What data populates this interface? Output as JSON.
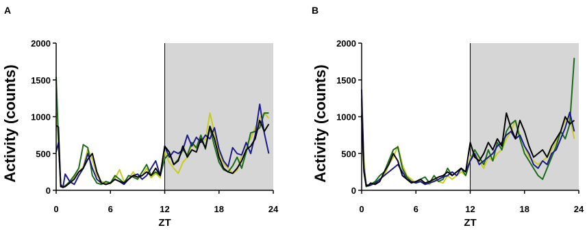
{
  "chart_data": [
    {
      "type": "line",
      "panel_label": "A",
      "xlabel": "ZT",
      "ylabel": "Activity (counts)",
      "xlim": [
        0,
        24
      ],
      "ylim": [
        0,
        2000
      ],
      "xticks": [
        0,
        6,
        12,
        18,
        24
      ],
      "yticks": [
        0,
        500,
        1000,
        1500,
        2000
      ],
      "shaded_region": [
        12,
        24
      ],
      "shade_color": "#d6d6d6",
      "divider_at": 12,
      "grid": false,
      "series": [
        {
          "color": "#c9cc1e",
          "x": [
            0,
            0.25,
            0.5,
            0.75,
            1,
            1.5,
            2,
            2.5,
            3,
            3.5,
            4,
            4.5,
            5,
            5.5,
            6,
            6.5,
            7,
            7.5,
            8,
            8.5,
            9,
            9.5,
            10,
            10.5,
            11,
            11.5,
            12,
            12.5,
            13,
            13.5,
            14,
            14.5,
            15,
            15.5,
            16,
            16.5,
            17,
            17.5,
            18,
            18.5,
            19,
            19.5,
            20,
            20.5,
            21,
            21.5,
            22,
            22.5,
            23,
            23.5
          ],
          "y": [
            1050,
            650,
            60,
            40,
            70,
            100,
            180,
            250,
            320,
            560,
            420,
            200,
            120,
            100,
            90,
            160,
            280,
            120,
            150,
            250,
            160,
            200,
            300,
            170,
            230,
            170,
            520,
            380,
            300,
            230,
            380,
            450,
            620,
            570,
            720,
            680,
            1050,
            780,
            520,
            370,
            300,
            230,
            270,
            480,
            620,
            700,
            850,
            980,
            1050,
            980
          ]
        },
        {
          "color": "#1a6a1a",
          "x": [
            0,
            0.25,
            0.5,
            0.75,
            1,
            1.5,
            2,
            2.5,
            3,
            3.5,
            4,
            4.5,
            5,
            5.5,
            6,
            6.5,
            7,
            7.5,
            8,
            8.5,
            9,
            9.5,
            10,
            10.5,
            11,
            11.5,
            12,
            12.5,
            13,
            13.5,
            14,
            14.5,
            15,
            15.5,
            16,
            16.5,
            17,
            17.5,
            18,
            18.5,
            19,
            19.5,
            20,
            20.5,
            21,
            21.5,
            22,
            22.5,
            23,
            23.5
          ],
          "y": [
            1540,
            700,
            50,
            40,
            60,
            120,
            200,
            300,
            620,
            580,
            200,
            100,
            80,
            120,
            100,
            200,
            150,
            100,
            200,
            180,
            150,
            250,
            350,
            200,
            250,
            200,
            430,
            500,
            350,
            420,
            550,
            480,
            650,
            580,
            750,
            560,
            850,
            600,
            380,
            280,
            250,
            330,
            450,
            300,
            520,
            780,
            800,
            850,
            1050,
            1050
          ]
        },
        {
          "color": "#1a1a8c",
          "x": [
            0,
            0.25,
            0.5,
            0.75,
            1,
            1.5,
            2,
            2.5,
            3,
            3.5,
            4,
            4.5,
            5,
            5.5,
            6,
            6.5,
            7,
            7.5,
            8,
            8.5,
            9,
            9.5,
            10,
            10.5,
            11,
            11.5,
            12,
            12.5,
            13,
            13.5,
            14,
            14.5,
            15,
            15.5,
            16,
            16.5,
            17,
            17.5,
            18,
            18.5,
            19,
            19.5,
            20,
            20.5,
            21,
            21.5,
            22,
            22.5,
            23,
            23.5
          ],
          "y": [
            520,
            650,
            80,
            40,
            220,
            120,
            80,
            200,
            300,
            500,
            300,
            150,
            100,
            80,
            100,
            150,
            120,
            80,
            150,
            200,
            220,
            150,
            200,
            300,
            400,
            200,
            600,
            450,
            530,
            500,
            550,
            750,
            600,
            720,
            650,
            750,
            700,
            850,
            560,
            400,
            320,
            580,
            500,
            480,
            650,
            500,
            750,
            1170,
            780,
            500
          ]
        },
        {
          "color": "#000000",
          "x": [
            0,
            0.25,
            0.5,
            0.75,
            1,
            1.5,
            2,
            2.5,
            3,
            3.5,
            4,
            4.5,
            5,
            5.5,
            6,
            6.5,
            7,
            7.5,
            8,
            8.5,
            9,
            9.5,
            10,
            10.5,
            11,
            11.5,
            12,
            12.5,
            13,
            13.5,
            14,
            14.5,
            15,
            15.5,
            16,
            16.5,
            17,
            17.5,
            18,
            18.5,
            19,
            19.5,
            20,
            20.5,
            21,
            21.5,
            22,
            22.5,
            23,
            23.5
          ],
          "y": [
            880,
            860,
            50,
            40,
            50,
            100,
            150,
            250,
            300,
            420,
            500,
            250,
            100,
            80,
            100,
            150,
            120,
            100,
            150,
            200,
            180,
            200,
            250,
            200,
            300,
            200,
            600,
            520,
            350,
            400,
            600,
            450,
            550,
            520,
            700,
            580,
            870,
            700,
            450,
            300,
            250,
            230,
            300,
            400,
            550,
            600,
            700,
            950,
            800,
            900
          ]
        }
      ]
    },
    {
      "type": "line",
      "panel_label": "B",
      "xlabel": "ZT",
      "ylabel": "Activity (counts)",
      "xlim": [
        0,
        24
      ],
      "ylim": [
        0,
        2000
      ],
      "xticks": [
        0,
        6,
        12,
        18,
        24
      ],
      "yticks": [
        0,
        500,
        1000,
        1500,
        2000
      ],
      "shaded_region": [
        12,
        24
      ],
      "shade_color": "#d6d6d6",
      "divider_at": 12,
      "grid": false,
      "series": [
        {
          "color": "#c9cc1e",
          "x": [
            0,
            0.25,
            0.5,
            0.75,
            1,
            1.5,
            2,
            2.5,
            3,
            3.5,
            4,
            4.5,
            5,
            5.5,
            6,
            6.5,
            7,
            7.5,
            8,
            8.5,
            9,
            9.5,
            10,
            10.5,
            11,
            11.5,
            12,
            12.5,
            13,
            13.5,
            14,
            14.5,
            15,
            15.5,
            16,
            16.5,
            17,
            17.5,
            18,
            18.5,
            19,
            19.5,
            20,
            20.5,
            21,
            21.5,
            22,
            22.5,
            23,
            23.5
          ],
          "y": [
            1200,
            400,
            60,
            70,
            80,
            100,
            150,
            200,
            350,
            450,
            600,
            350,
            200,
            150,
            100,
            120,
            100,
            80,
            150,
            120,
            100,
            200,
            150,
            200,
            250,
            200,
            450,
            500,
            400,
            300,
            450,
            400,
            500,
            550,
            700,
            800,
            950,
            750,
            600,
            450,
            400,
            350,
            400,
            450,
            550,
            650,
            800,
            950,
            1000,
            700
          ]
        },
        {
          "color": "#1a6a1a",
          "x": [
            0,
            0.25,
            0.5,
            0.75,
            1,
            1.5,
            2,
            2.5,
            3,
            3.5,
            4,
            4.5,
            5,
            5.5,
            6,
            6.5,
            7,
            7.5,
            8,
            8.5,
            9,
            9.5,
            10,
            10.5,
            11,
            11.5,
            12,
            12.5,
            13,
            13.5,
            14,
            14.5,
            15,
            15.5,
            16,
            16.5,
            17,
            17.5,
            18,
            18.5,
            19,
            19.5,
            20,
            20.5,
            21,
            21.5,
            22,
            22.5,
            23,
            23.5
          ],
          "y": [
            1250,
            300,
            50,
            60,
            80,
            120,
            200,
            250,
            400,
            550,
            590,
            300,
            180,
            120,
            100,
            150,
            180,
            100,
            200,
            120,
            150,
            300,
            200,
            250,
            300,
            200,
            400,
            550,
            450,
            350,
            550,
            400,
            650,
            550,
            800,
            900,
            950,
            700,
            500,
            400,
            300,
            200,
            150,
            300,
            450,
            600,
            800,
            700,
            900,
            1800
          ]
        },
        {
          "color": "#1a1a8c",
          "x": [
            0,
            0.25,
            0.5,
            0.75,
            1,
            1.5,
            2,
            2.5,
            3,
            3.5,
            4,
            4.5,
            5,
            5.5,
            6,
            6.5,
            7,
            7.5,
            8,
            8.5,
            9,
            9.5,
            10,
            10.5,
            11,
            11.5,
            12,
            12.5,
            13,
            13.5,
            14,
            14.5,
            15,
            15.5,
            16,
            16.5,
            17,
            17.5,
            18,
            18.5,
            19,
            19.5,
            20,
            20.5,
            21,
            21.5,
            22,
            22.5,
            23,
            23.5
          ],
          "y": [
            1370,
            300,
            80,
            60,
            70,
            100,
            150,
            200,
            250,
            300,
            350,
            250,
            150,
            120,
            100,
            120,
            80,
            100,
            120,
            150,
            180,
            200,
            250,
            200,
            300,
            250,
            400,
            500,
            350,
            400,
            450,
            500,
            600,
            650,
            750,
            800,
            700,
            750,
            600,
            500,
            350,
            300,
            400,
            350,
            500,
            550,
            700,
            850,
            1060,
            800
          ]
        },
        {
          "color": "#000000",
          "x": [
            0,
            0.25,
            0.5,
            0.75,
            1,
            1.5,
            2,
            2.5,
            3,
            3.5,
            4,
            4.5,
            5,
            5.5,
            6,
            6.5,
            7,
            7.5,
            8,
            8.5,
            9,
            9.5,
            10,
            10.5,
            11,
            11.5,
            12,
            12.5,
            13,
            13.5,
            14,
            14.5,
            15,
            15.5,
            16,
            16.5,
            17,
            17.5,
            18,
            18.5,
            19,
            19.5,
            20,
            20.5,
            21,
            21.5,
            22,
            22.5,
            23,
            23.5
          ],
          "y": [
            1020,
            250,
            60,
            70,
            100,
            80,
            120,
            250,
            350,
            500,
            400,
            200,
            150,
            100,
            120,
            150,
            100,
            120,
            150,
            180,
            200,
            250,
            200,
            250,
            300,
            250,
            650,
            450,
            400,
            500,
            650,
            550,
            700,
            600,
            1050,
            850,
            700,
            950,
            800,
            600,
            450,
            500,
            550,
            450,
            600,
            700,
            800,
            1000,
            900,
            950
          ]
        }
      ]
    }
  ]
}
